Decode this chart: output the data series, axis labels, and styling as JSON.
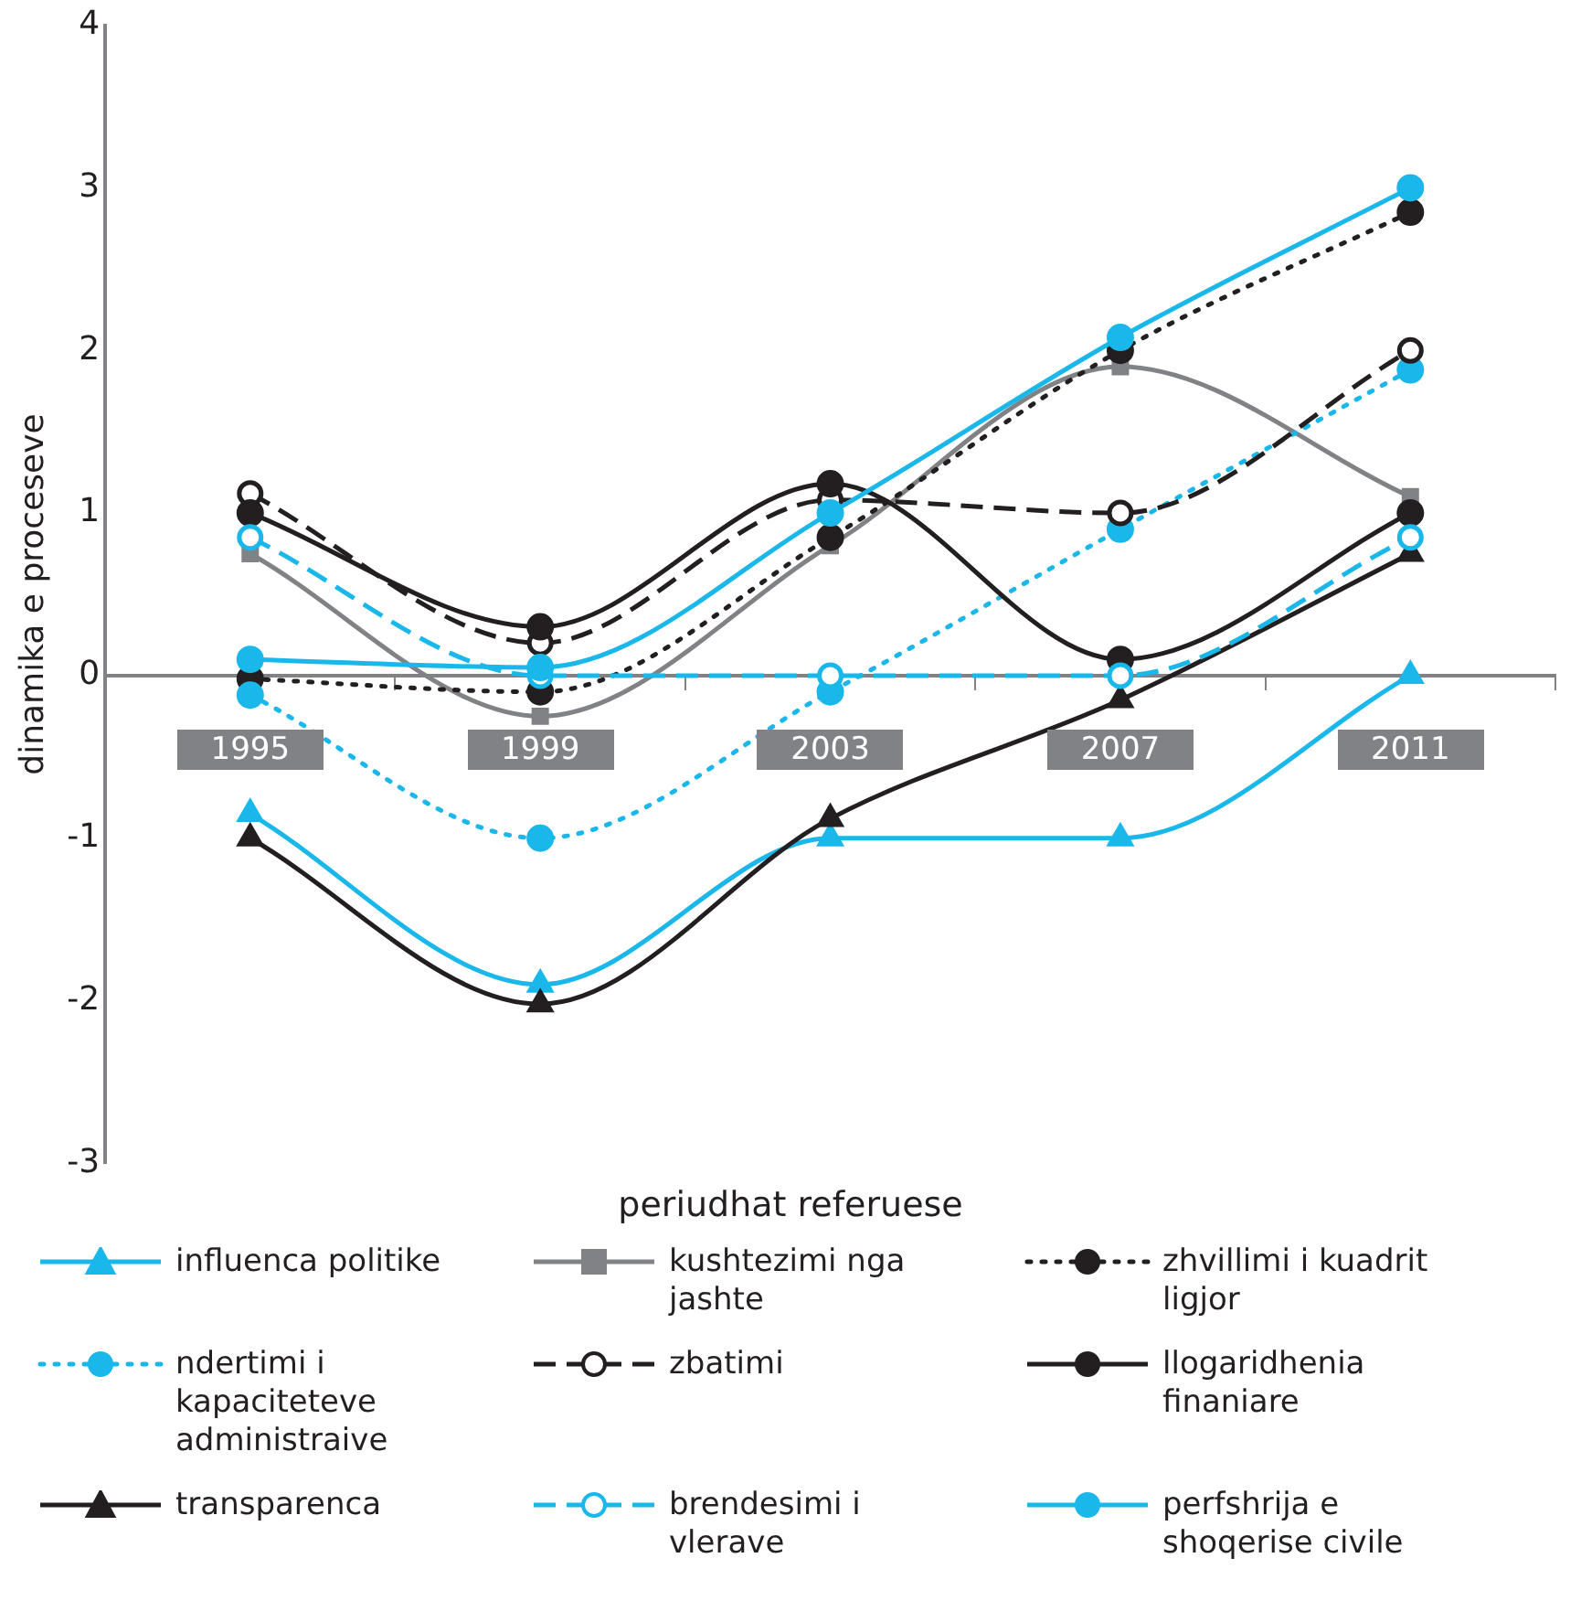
{
  "chart_data": {
    "type": "line",
    "xlabel": "periudhat referuese",
    "ylabel": "dinamika e proceseve",
    "categories": [
      "1995",
      "1999",
      "2003",
      "2007",
      "2011"
    ],
    "ylim": [
      -3,
      4
    ],
    "yticks": [
      -3,
      -2,
      -1,
      0,
      1,
      2,
      3,
      4
    ],
    "grid": false,
    "legend": "bottom",
    "series": [
      {
        "name": "influenca politike",
        "color": "#1ab7ea",
        "marker": "triangle",
        "line_style": "solid",
        "values": [
          -0.85,
          -1.9,
          -1.0,
          -1.0,
          0.0
        ]
      },
      {
        "name": "kushtezimi nga jashte",
        "color": "#808285",
        "marker": "square",
        "line_style": "solid",
        "values": [
          0.75,
          -0.25,
          0.8,
          1.9,
          1.1
        ]
      },
      {
        "name": "zhvillimi i kuadrit ligjor",
        "color": "#231f20",
        "marker": "circle",
        "line_style": "dotted",
        "values": [
          -0.02,
          -0.1,
          0.85,
          2.0,
          2.85
        ]
      },
      {
        "name": "ndertimi i kapaciteteve administraive",
        "color": "#1ab7ea",
        "marker": "circle",
        "line_style": "dotted",
        "values": [
          -0.12,
          -1.0,
          -0.1,
          0.9,
          1.88
        ]
      },
      {
        "name": "zbatimi",
        "color": "#231f20",
        "marker": "open circle",
        "line_style": "dashed",
        "values": [
          1.12,
          0.2,
          1.08,
          1.0,
          2.0
        ]
      },
      {
        "name": "llogaridhenia finaniare",
        "color": "#231f20",
        "marker": "circle",
        "line_style": "solid",
        "values": [
          1.0,
          0.3,
          1.18,
          0.1,
          1.0
        ]
      },
      {
        "name": "transparenca",
        "color": "#231f20",
        "marker": "triangle",
        "line_style": "solid",
        "values": [
          -1.0,
          -2.02,
          -0.88,
          -0.15,
          0.75
        ]
      },
      {
        "name": "brendesimi i vlerave",
        "color": "#1ab7ea",
        "marker": "open circle",
        "line_style": "dashed",
        "values": [
          0.85,
          0.0,
          0.0,
          0.0,
          0.85
        ]
      },
      {
        "name": "perfshrija e shoqerise civile",
        "color": "#1ab7ea",
        "marker": "circle",
        "line_style": "solid",
        "values": [
          0.1,
          0.05,
          1.0,
          2.08,
          3.0
        ]
      }
    ]
  }
}
